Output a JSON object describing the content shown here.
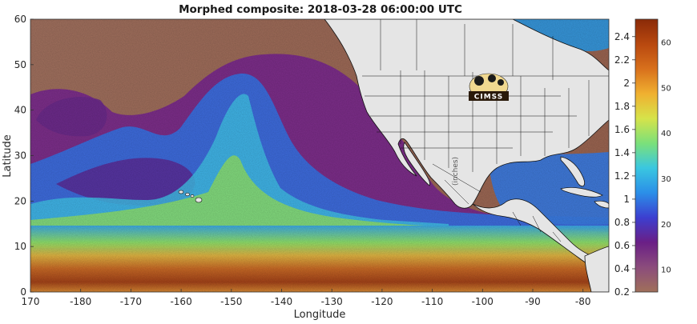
{
  "title": "Morphed composite: 2018-03-28 06:00:00 UTC",
  "xlabel": "Longitude",
  "ylabel": "Latitude",
  "unit_label": "(inches)",
  "logo_text": "CIMSS",
  "x_ticks": [
    "170",
    "-180",
    "-170",
    "-160",
    "-150",
    "-140",
    "-130",
    "-120",
    "-110",
    "-100",
    "-90",
    "-80"
  ],
  "y_ticks": [
    "0",
    "10",
    "20",
    "30",
    "40",
    "50",
    "60"
  ],
  "colorbar": {
    "left_ticks": [
      "0.2",
      "0.4",
      "0.6",
      "0.8",
      "1",
      "1.2",
      "1.4",
      "1.6",
      "1.8",
      "2",
      "2.2",
      "2.4"
    ],
    "right_ticks": [
      "10",
      "20",
      "30",
      "40",
      "50",
      "60"
    ],
    "colors": [
      "#a0705a",
      "#8b4c7c",
      "#6a1f86",
      "#3c3fd0",
      "#2b8fe8",
      "#3ac7e0",
      "#7be07a",
      "#d6e34a",
      "#f0b030",
      "#d8701c",
      "#b8480f",
      "#8a2a08"
    ]
  },
  "map": {
    "lon_range": [
      170,
      -75
    ],
    "lat_range": [
      0,
      60
    ],
    "moisture_colors": {
      "dry": "#9c6a55",
      "purple": "#7a2a8c",
      "blue": "#3a6fe0",
      "cyan": "#40c8e8",
      "green": "#8ee06a",
      "yellow": "#e0d84a",
      "orange": "#e08a2a",
      "red": "#b03a10",
      "land": "#e5e5e5"
    }
  }
}
